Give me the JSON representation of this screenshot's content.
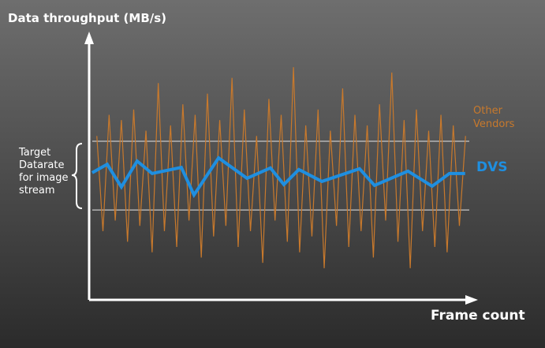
{
  "chart_data": {
    "type": "line",
    "title": "Data throughput (MB/s)",
    "x_label": "Frame count",
    "annotation": "Target Datarate for image stream",
    "target_band": [
      34,
      60
    ],
    "xlim": [
      0,
      100
    ],
    "ylim": [
      0,
      100
    ],
    "series": [
      {
        "name": "Other Vendors",
        "color": "#c8792c",
        "x": [
          2,
          3.6,
          5.2,
          6.8,
          8.4,
          10,
          11.6,
          13.2,
          14.8,
          16.4,
          18,
          19.6,
          21.2,
          22.8,
          24.4,
          26,
          27.6,
          29.2,
          30.8,
          32.4,
          34,
          35.6,
          37.2,
          38.8,
          40.4,
          42,
          43.6,
          45.2,
          46.8,
          48.4,
          50,
          51.6,
          53.2,
          54.8,
          56.4,
          58,
          59.6,
          61.2,
          62.8,
          64.4,
          66,
          67.6,
          69.2,
          70.8,
          72.4,
          74,
          75.6,
          77.2,
          78.8,
          80.4,
          82,
          83.6,
          85.2,
          86.8,
          88.4,
          90,
          91.6,
          93.2,
          94.8,
          96.4,
          98
        ],
        "values": [
          62,
          26,
          70,
          30,
          68,
          22,
          72,
          28,
          64,
          18,
          82,
          26,
          66,
          20,
          74,
          30,
          70,
          16,
          78,
          24,
          68,
          28,
          84,
          20,
          72,
          26,
          62,
          14,
          76,
          30,
          70,
          22,
          88,
          18,
          66,
          24,
          72,
          12,
          64,
          28,
          80,
          20,
          70,
          26,
          66,
          16,
          74,
          30,
          86,
          22,
          68,
          12,
          72,
          26,
          64,
          20,
          70,
          18,
          66,
          28,
          62
        ]
      },
      {
        "name": "DVS",
        "color": "#1f8fe0",
        "x": [
          0.8,
          4.7,
          8.4,
          12.5,
          16.4,
          24,
          27.3,
          33.7,
          41.1,
          47.2,
          50.7,
          54.6,
          60.6,
          70.4,
          74.3,
          83,
          89.3,
          93.8,
          97.9
        ],
        "values": [
          48.1,
          51.3,
          42.7,
          52.5,
          47.8,
          50.1,
          39.7,
          53.7,
          46,
          49.9,
          43.6,
          49.3,
          44.8,
          49.6,
          43.3,
          48.7,
          43,
          47.8,
          47.8
        ]
      }
    ]
  }
}
